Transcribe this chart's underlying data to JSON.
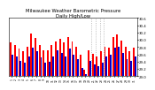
{
  "title": "Milwaukee Weather Barometric Pressure\nDaily High/Low",
  "title_fontsize": 3.8,
  "ylim": [
    29.0,
    30.6
  ],
  "ytick_values": [
    29.0,
    29.2,
    29.4,
    29.6,
    29.8,
    30.0,
    30.2,
    30.4,
    30.6
  ],
  "background_color": "#ffffff",
  "high_color": "#ff0000",
  "low_color": "#0000cc",
  "dates": [
    "1",
    "2",
    "3",
    "4",
    "5",
    "6",
    "7",
    "8",
    "9",
    "10",
    "11",
    "12",
    "13",
    "14",
    "15",
    "16",
    "17",
    "18",
    "19",
    "20",
    "21",
    "22",
    "23",
    "24",
    "25",
    "26",
    "27",
    "28",
    "29",
    "30",
    "31"
  ],
  "highs": [
    29.93,
    29.85,
    29.75,
    29.68,
    29.8,
    30.18,
    30.05,
    29.85,
    29.72,
    29.7,
    29.85,
    29.95,
    30.02,
    29.92,
    30.08,
    29.95,
    29.82,
    29.6,
    29.18,
    29.72,
    29.62,
    29.55,
    29.68,
    29.8,
    29.78,
    30.08,
    30.15,
    29.98,
    29.8,
    29.68,
    29.78
  ],
  "lows": [
    29.6,
    29.55,
    29.42,
    29.38,
    29.55,
    29.78,
    29.68,
    29.52,
    29.38,
    29.4,
    29.55,
    29.72,
    29.65,
    29.55,
    29.75,
    29.6,
    29.48,
    29.22,
    29.05,
    29.42,
    29.32,
    29.28,
    29.38,
    29.55,
    29.6,
    29.78,
    29.82,
    29.65,
    29.48,
    29.42,
    29.55
  ],
  "dotted_lines": [
    19.5,
    20.5,
    21.5,
    22.5
  ]
}
